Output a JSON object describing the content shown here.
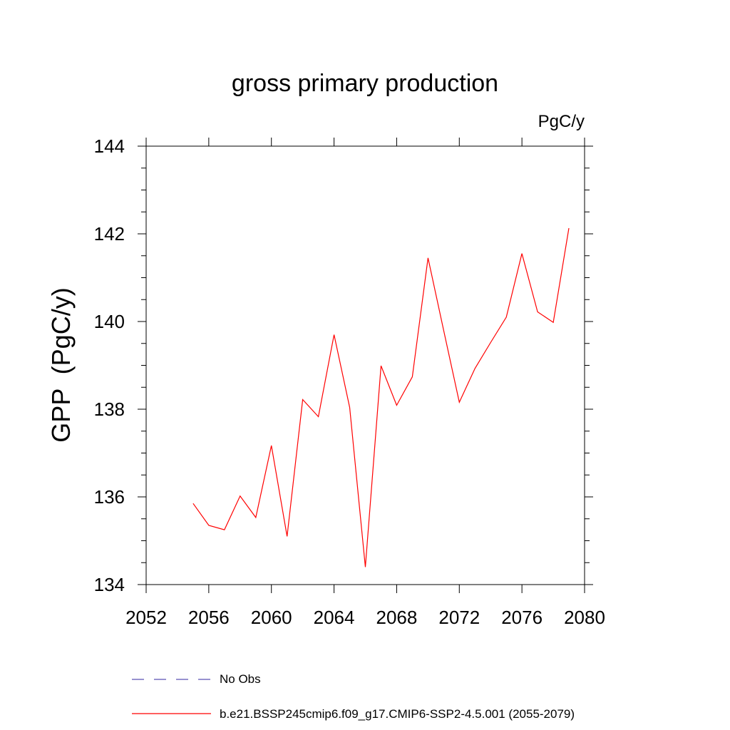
{
  "chart_data": {
    "type": "line",
    "title": "gross primary production",
    "units_label": "PgC/y",
    "ylabel": "GPP  (PgC/y)",
    "xlabel": "",
    "xlim": [
      2052,
      2080
    ],
    "ylim": [
      134,
      144
    ],
    "x_ticks": [
      2052,
      2056,
      2060,
      2064,
      2068,
      2072,
      2076,
      2080
    ],
    "y_ticks": [
      134,
      136,
      138,
      140,
      142,
      144
    ],
    "grid": false,
    "legend_position": "bottom",
    "series": [
      {
        "name": "b.e21.BSSP245cmip6.f09_g17.CMIP6-SSP2-4.5.001 (2055-2079)",
        "color": "#ff0000",
        "style": "solid",
        "x": [
          2055,
          2056,
          2057,
          2058,
          2059,
          2060,
          2061,
          2062,
          2063,
          2064,
          2065,
          2066,
          2067,
          2068,
          2069,
          2070,
          2071,
          2072,
          2073,
          2074,
          2075,
          2076,
          2077,
          2078,
          2079
        ],
        "y": [
          135.85,
          135.35,
          135.25,
          136.02,
          135.53,
          137.17,
          135.1,
          138.22,
          137.83,
          139.7,
          138.04,
          134.4,
          138.99,
          138.09,
          138.74,
          141.45,
          139.8,
          138.16,
          138.93,
          139.52,
          140.1,
          141.55,
          140.22,
          139.98,
          142.13
        ]
      }
    ],
    "legend": [
      {
        "name": "No Obs",
        "color": "#5a50b4",
        "style": "dashed"
      },
      {
        "name": "b.e21.BSSP245cmip6.f09_g17.CMIP6-SSP2-4.5.001 (2055-2079)",
        "color": "#ff0000",
        "style": "solid"
      }
    ]
  }
}
